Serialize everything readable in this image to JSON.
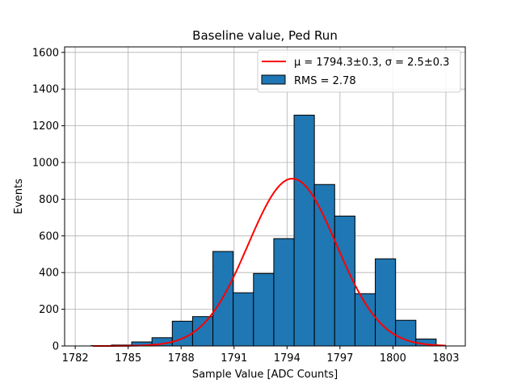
{
  "chart_data": {
    "type": "bar",
    "title": "Baseline value, Ped Run",
    "xlabel": "Sample Value [ADC Counts]",
    "ylabel": "Events",
    "xlim": [
      1781.4,
      1804.1
    ],
    "ylim": [
      0,
      1630
    ],
    "xticks": [
      1782,
      1785,
      1788,
      1791,
      1794,
      1797,
      1800,
      1803
    ],
    "yticks": [
      0,
      200,
      400,
      600,
      800,
      1000,
      1200,
      1400,
      1600
    ],
    "grid": true,
    "legend_placement": "top-right",
    "histogram": {
      "name": "RMS = 2.78",
      "color": "#1f77b4",
      "edge_color": "#000000",
      "bin_edges": [
        1782.9,
        1784.05,
        1785.2,
        1786.35,
        1787.5,
        1788.65,
        1789.8,
        1790.95,
        1792.1,
        1793.25,
        1794.4,
        1795.55,
        1796.7,
        1797.85,
        1799.0,
        1800.15,
        1801.3,
        1802.45
      ],
      "values": [
        2,
        5,
        22,
        45,
        135,
        160,
        515,
        290,
        395,
        585,
        1258,
        880,
        708,
        285,
        475,
        140,
        38,
        10
      ]
    },
    "fit": {
      "name": "$\\mu = 1794.3{\\pm}0.3$, $\\sigma = 2.5{\\pm}0.3$",
      "legend_label": "μ = 1794.3±0.3, σ = 2.5±0.3",
      "color": "#ff0000",
      "mu": 1794.3,
      "sigma": 2.5,
      "amplitude": 912,
      "x_range": [
        1783.0,
        1803.0
      ]
    }
  }
}
